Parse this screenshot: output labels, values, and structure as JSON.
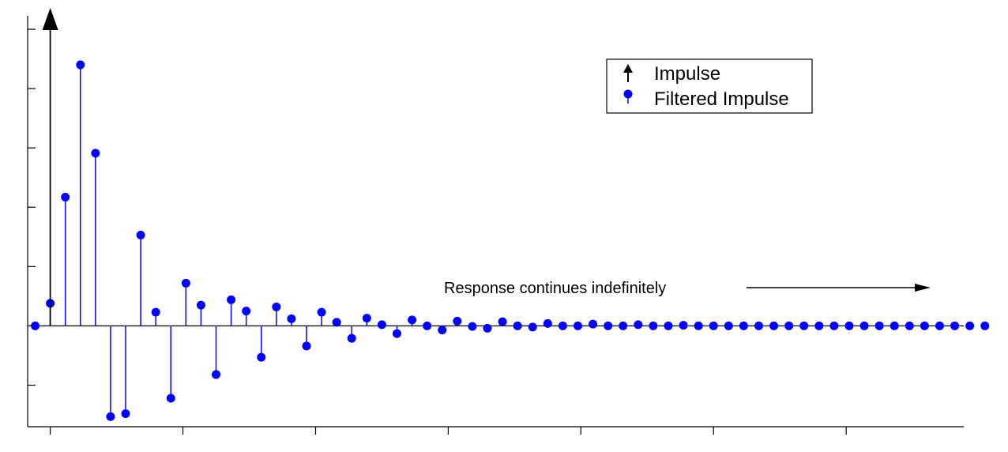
{
  "chart_data": {
    "type": "stem",
    "title": "",
    "xlabel": "",
    "ylabel": "",
    "x_start": -1,
    "xlim": [
      -1.5,
      60.6
    ],
    "ylim": [
      -1.7,
      5.2
    ],
    "x_major_ticks": [
      0,
      8.8,
      17.6,
      26.4,
      35.2,
      44,
      52.8,
      61.6
    ],
    "y_major_ticks": [
      -1,
      0,
      1,
      2,
      3,
      4,
      5
    ],
    "tick_labels_shown": false,
    "grid": false,
    "legend": {
      "placement": "top-right",
      "entries": [
        {
          "label": "Impulse",
          "marker": "arrow",
          "color": "#000000"
        },
        {
          "label": "Filtered Impulse",
          "marker": "dot",
          "color": "#0000ff"
        }
      ]
    },
    "series": [
      {
        "name": "Impulse",
        "color": "#000000",
        "points": [
          {
            "x": 0,
            "y": 5.2
          }
        ]
      },
      {
        "name": "Filtered Impulse",
        "color": "#0000ff",
        "values": [
          0,
          0.38,
          2.17,
          4.4,
          2.91,
          -1.53,
          -1.48,
          1.53,
          0.23,
          -1.22,
          0.72,
          0.35,
          -0.82,
          0.44,
          0.25,
          -0.53,
          0.32,
          0.12,
          -0.34,
          0.23,
          0.06,
          -0.21,
          0.13,
          0.02,
          -0.13,
          0.1,
          0.0,
          -0.07,
          0.08,
          -0.01,
          -0.04,
          0.07,
          0.0,
          -0.02,
          0.04,
          0.0,
          0.0,
          0.03,
          0.0,
          0.0,
          0.02,
          0.0,
          0.0,
          0.01,
          0.0,
          0.0,
          0.0,
          0.0,
          0.0,
          0.0,
          0.0,
          0.0,
          0.0,
          0.0,
          0.0,
          0.0,
          0.0,
          0.0,
          0.0,
          0.0,
          0.0,
          0.0,
          0.0,
          0.0
        ]
      }
    ],
    "annotations": [
      {
        "text": "Response continues indefinitely",
        "arrow": "right",
        "at_x": 27,
        "at_y": 0.55
      }
    ]
  }
}
